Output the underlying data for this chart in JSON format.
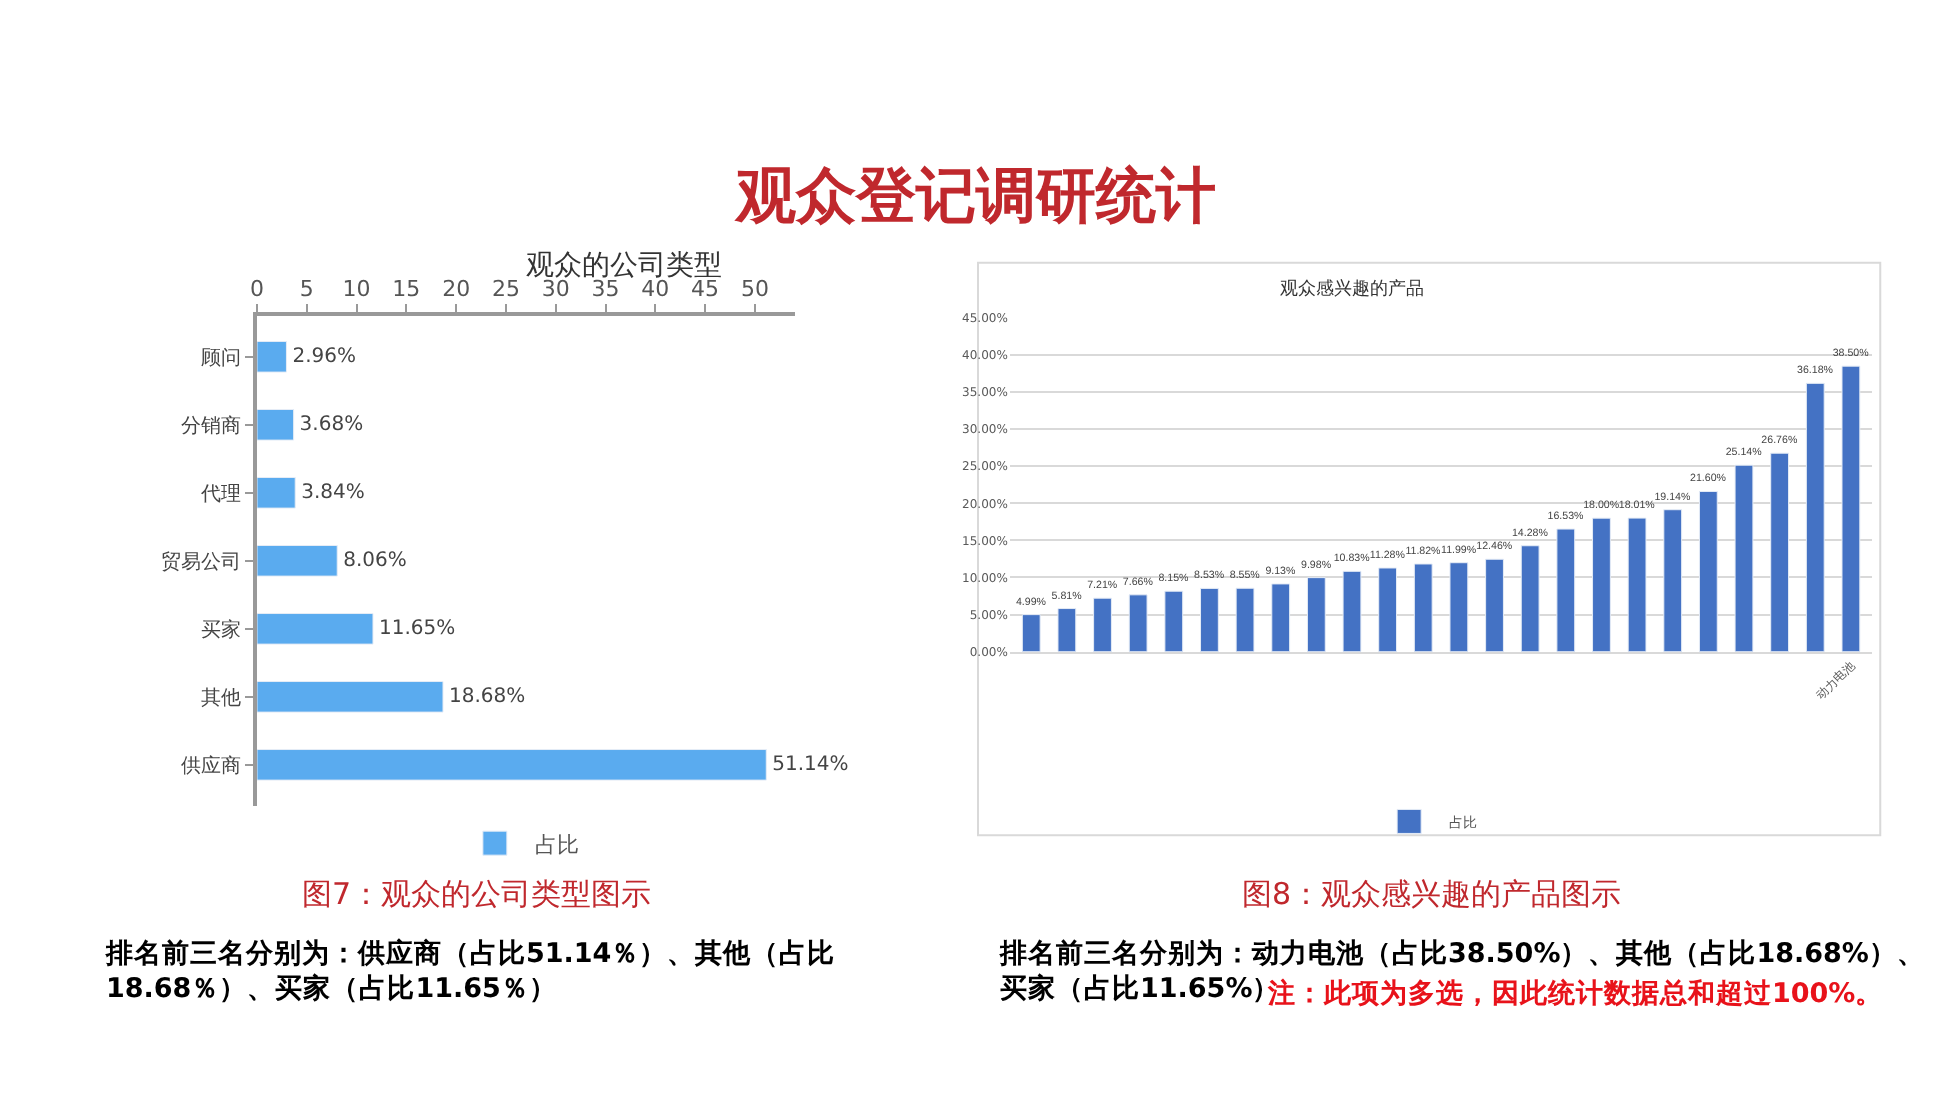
{
  "chart_data": [
    {
      "type": "bar",
      "orientation": "horizontal",
      "title": "观众的公司类型",
      "categories": [
        "顾问",
        "分销商",
        "代理",
        "贸易公司",
        "买家",
        "其他",
        "供应商"
      ],
      "series": [
        {
          "name": "占比",
          "color": "#5aabef",
          "values": [
            2.96,
            3.68,
            3.84,
            8.06,
            11.65,
            18.68,
            51.14
          ],
          "value_labels": [
            "2.96%",
            "3.68%",
            "3.84%",
            "8.06%",
            "11.65%",
            "18.68%",
            "51.14%"
          ]
        }
      ],
      "xlim": [
        0,
        54
      ],
      "xticks": [
        0,
        5,
        10,
        15,
        20,
        25,
        30,
        35,
        40,
        45,
        50
      ],
      "grid": false,
      "legend": "bottom",
      "annotations": [
        "观众登记调研统计",
        "图7：观众的公司类型图示",
        "排名前三名分别为：供应商（占比51.14％）、其他（占比18.68％）、买家（占比11.65％）"
      ]
    },
    {
      "type": "bar",
      "title": "观众感兴趣的产品",
      "categories": [
        null,
        null,
        null,
        null,
        null,
        null,
        null,
        null,
        null,
        null,
        null,
        null,
        null,
        null,
        null,
        null,
        null,
        null,
        null,
        null,
        null,
        null,
        null,
        "动力电池"
      ],
      "series": [
        {
          "name": "占比",
          "color": "#4472c4",
          "values": [
            4.99,
            5.81,
            7.21,
            7.66,
            8.15,
            8.53,
            8.55,
            9.13,
            9.98,
            10.83,
            11.28,
            11.82,
            11.99,
            12.46,
            14.28,
            16.53,
            18.0,
            18.01,
            19.14,
            21.6,
            25.14,
            26.76,
            36.18,
            38.5
          ],
          "value_labels": [
            "4.99%",
            "5.81%",
            "7.21%",
            "7.66%",
            "8.15%",
            "8.53%",
            "8.55%",
            "9.13%",
            "9.98%",
            "10.83%",
            "11.28%",
            "11.82%",
            "11.99%",
            "12.46%",
            "14.28%",
            "16.53%",
            "18.00%",
            "18.01%",
            "19.14%",
            "21.60%",
            "25.14%",
            "26.76%",
            "36.18%",
            "38.50%"
          ]
        }
      ],
      "ylim": [
        0,
        45
      ],
      "yticks": [
        {
          "value": 0,
          "label": "0.00%"
        },
        {
          "value": 5,
          "label": "5.00%"
        },
        {
          "value": 10,
          "label": "10.00%"
        },
        {
          "value": 15,
          "label": "15.00%"
        },
        {
          "value": 20,
          "label": "20.00%"
        },
        {
          "value": 25,
          "label": "25.00%"
        },
        {
          "value": 30,
          "label": "30.00%"
        },
        {
          "value": 35,
          "label": "35.00%"
        },
        {
          "value": 40,
          "label": "40.00%"
        },
        {
          "value": 45,
          "label": "45.00%"
        }
      ],
      "grid": "y",
      "legend": "bottom",
      "annotations": [
        "图8：观众感兴趣的产品图示",
        "排名前三名分别为：动力电池（占比38.50%）、其他（占比18.68%）、买家（占比11.65%）",
        "注：此项为多选，因此统计数据总和超过100%。"
      ]
    }
  ]
}
